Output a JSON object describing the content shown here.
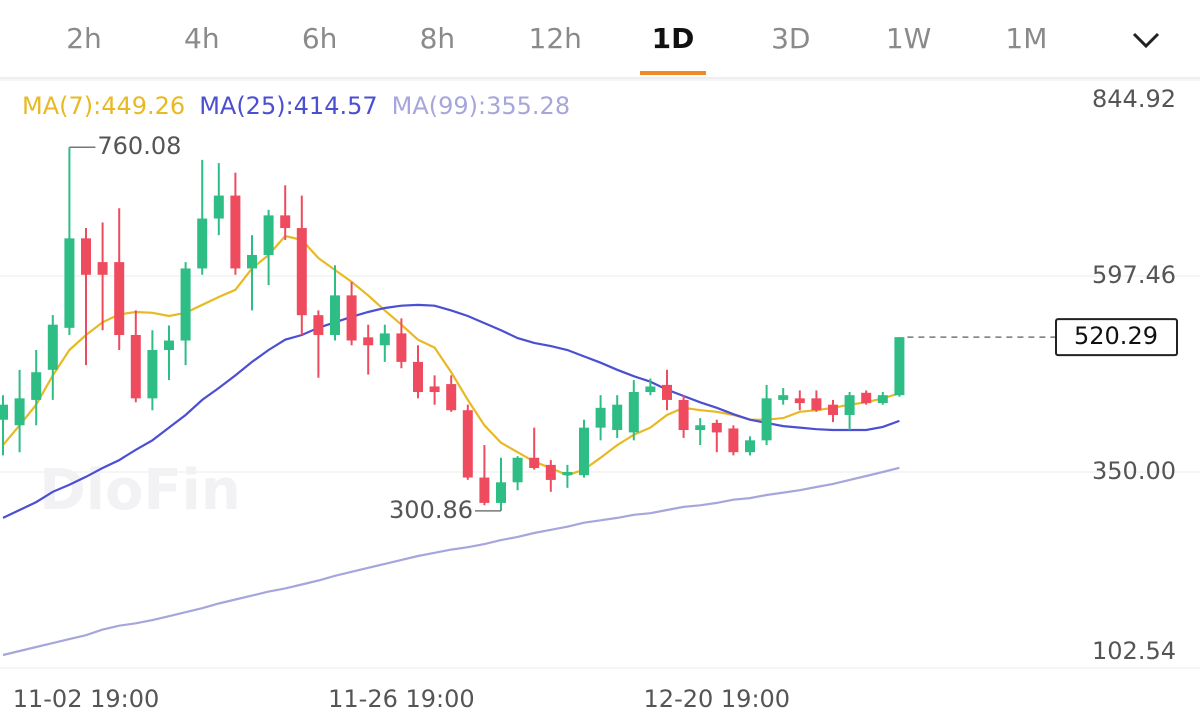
{
  "tabs": [
    "2h",
    "4h",
    "6h",
    "8h",
    "12h",
    "1D",
    "3D",
    "1W",
    "1M"
  ],
  "active_tab": "1D",
  "watermark": "DloFin",
  "chart_data": {
    "type": "candlestick",
    "categories": [
      null,
      null,
      null,
      null,
      null,
      "11-02 19:00",
      null,
      null,
      null,
      null,
      null,
      null,
      null,
      null,
      null,
      null,
      null,
      null,
      null,
      null,
      null,
      null,
      null,
      null,
      "11-26 19:00",
      null,
      null,
      null,
      null,
      null,
      null,
      null,
      null,
      null,
      null,
      null,
      null,
      null,
      null,
      null,
      null,
      null,
      null,
      "12-20 19:00",
      null,
      null,
      null,
      null,
      null,
      null,
      null,
      null,
      null,
      null,
      null
    ],
    "open": [
      416,
      409,
      441,
      479,
      532,
      645,
      615,
      615,
      523,
      443,
      504,
      516,
      607,
      670,
      699,
      607,
      624,
      674,
      658,
      548,
      523,
      573,
      520,
      510,
      525,
      489,
      458,
      461,
      428,
      343,
      311,
      337,
      368,
      359,
      346,
      346,
      406,
      403,
      400,
      451,
      460,
      441,
      403,
      412,
      405,
      375,
      390,
      441,
      443,
      443,
      435,
      422,
      450,
      437,
      447
    ],
    "high": [
      447,
      479,
      504,
      548,
      760.08,
      658,
      665,
      683,
      554,
      529,
      535,
      615,
      744,
      740,
      728,
      649,
      681,
      712,
      699,
      554,
      611,
      590,
      536,
      536,
      544,
      510,
      472,
      472,
      435,
      384,
      368,
      370,
      406,
      365,
      359,
      416,
      447,
      447,
      466,
      468,
      479,
      447,
      418,
      416,
      409,
      395,
      460,
      456,
      453,
      453,
      441,
      451,
      453,
      451,
      520.29
    ],
    "low": [
      371,
      375,
      409,
      441,
      523,
      485,
      529,
      504,
      438,
      428,
      466,
      485,
      599,
      649,
      599,
      554,
      586,
      643,
      523,
      469,
      516,
      510,
      473,
      489,
      481,
      443,
      435,
      426,
      340,
      308,
      300.86,
      327,
      353,
      325,
      330,
      343,
      390,
      393,
      390,
      447,
      428,
      393,
      384,
      375,
      371,
      371,
      384,
      435,
      428,
      426,
      413,
      403,
      435,
      435,
      445
    ],
    "close": [
      435,
      443,
      476,
      536,
      645,
      599,
      599,
      523,
      443,
      504,
      516,
      607,
      670,
      699,
      607,
      624,
      674,
      658,
      548,
      523,
      573,
      516,
      510,
      525,
      489,
      451,
      451,
      428,
      343,
      311,
      337,
      368,
      355,
      340,
      350,
      406,
      431,
      435,
      451,
      458,
      441,
      403,
      409,
      400,
      375,
      390,
      443,
      447,
      437,
      428,
      422,
      447,
      437,
      447,
      520.29
    ],
    "up_color": "#2ebd85",
    "down_color": "#ef4b5e",
    "series": [
      {
        "name": "MA(7):449.26",
        "color": "#e8b923",
        "values": [
          384,
          409,
          435,
          472,
          504,
          523,
          539,
          549,
          552,
          551,
          547,
          551,
          561,
          571,
          580,
          607,
          624,
          648,
          643,
          620,
          605,
          590,
          573,
          554,
          536,
          517,
          507,
          476,
          441,
          409,
          387,
          375,
          363,
          355,
          346,
          353,
          368,
          384,
          397,
          406,
          422,
          431,
          428,
          426,
          422,
          416,
          416,
          418,
          426,
          428,
          431,
          435,
          438,
          443,
          449.26
        ]
      },
      {
        "name": "MA(25):414.57",
        "color": "#4b4fd1",
        "values": [
          292,
          302,
          312,
          325,
          334,
          344,
          355,
          365,
          378,
          390,
          406,
          422,
          441,
          456,
          472,
          489,
          504,
          517,
          523,
          532,
          539,
          546,
          552,
          557,
          560,
          561,
          560,
          554,
          547,
          538,
          529,
          519,
          513,
          509,
          504,
          496,
          488,
          479,
          471,
          464,
          454,
          446,
          438,
          431,
          423,
          416,
          412,
          408,
          406,
          404,
          403,
          403,
          403,
          407,
          414.57
        ]
      },
      {
        "name": "MA(99):355.28",
        "color": "#a6a6dc",
        "values": [
          119,
          124,
          129,
          134,
          139,
          144,
          151,
          156,
          159,
          163,
          168,
          173,
          178,
          184,
          189,
          194,
          199,
          203,
          208,
          213,
          219,
          224,
          229,
          234,
          239,
          244,
          248,
          252,
          255,
          259,
          264,
          268,
          273,
          277,
          281,
          286,
          289,
          292,
          296,
          298,
          302,
          306,
          308,
          311,
          315,
          317,
          321,
          324,
          327,
          331,
          335,
          340,
          345,
          350,
          355.28
        ]
      }
    ],
    "ylim": [
      102.54,
      844.92
    ],
    "yticks": [
      844.92,
      597.46,
      {
        "value": 350,
        "label": "350.00"
      },
      102.54
    ],
    "grid": true,
    "high_annotation_index": 4,
    "low_annotation_index": 30
  }
}
